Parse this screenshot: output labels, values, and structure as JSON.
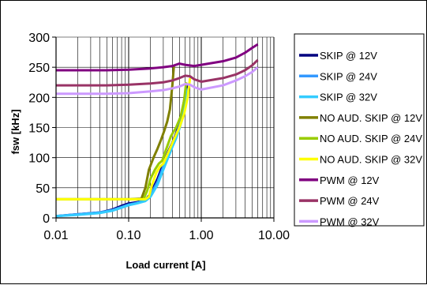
{
  "chart_data": {
    "type": "line",
    "title": "",
    "xlabel": "Load current [A]",
    "ylabel": "fsw [kHz]",
    "x_scale": "log",
    "xlim": [
      0.01,
      10
    ],
    "ylim": [
      0,
      300
    ],
    "x_ticks": [
      {
        "value": 0.01,
        "label": "0.01"
      },
      {
        "value": 0.1,
        "label": "0.10"
      },
      {
        "value": 1,
        "label": "1.00"
      },
      {
        "value": 10,
        "label": "10.00"
      }
    ],
    "y_ticks": [
      {
        "value": 0,
        "label": "0"
      },
      {
        "value": 50,
        "label": "50"
      },
      {
        "value": 100,
        "label": "100"
      },
      {
        "value": 150,
        "label": "150"
      },
      {
        "value": 200,
        "label": "200"
      },
      {
        "value": 250,
        "label": "250"
      },
      {
        "value": 300,
        "label": "300"
      }
    ],
    "grid": true,
    "legend_position": "right",
    "series": [
      {
        "name": "SKIP @ 12V",
        "color": "#000080",
        "points": [
          [
            0.01,
            3
          ],
          [
            0.02,
            6
          ],
          [
            0.04,
            9
          ],
          [
            0.06,
            14
          ],
          [
            0.08,
            20
          ],
          [
            0.1,
            24
          ],
          [
            0.13,
            26
          ],
          [
            0.17,
            30
          ],
          [
            0.2,
            40
          ],
          [
            0.25,
            65
          ],
          [
            0.3,
            90
          ],
          [
            0.35,
            110
          ],
          [
            0.4,
            125
          ],
          [
            0.45,
            140
          ],
          [
            0.5,
            158
          ],
          [
            0.55,
            178
          ],
          [
            0.6,
            205
          ],
          [
            0.65,
            220
          ]
        ]
      },
      {
        "name": "SKIP @ 24V",
        "color": "#3399FF",
        "points": [
          [
            0.01,
            3
          ],
          [
            0.02,
            6
          ],
          [
            0.04,
            9
          ],
          [
            0.06,
            13
          ],
          [
            0.08,
            18
          ],
          [
            0.1,
            22
          ],
          [
            0.13,
            25
          ],
          [
            0.17,
            30
          ],
          [
            0.2,
            38
          ],
          [
            0.25,
            60
          ],
          [
            0.3,
            85
          ],
          [
            0.35,
            105
          ],
          [
            0.4,
            122
          ],
          [
            0.45,
            138
          ],
          [
            0.5,
            152
          ],
          [
            0.55,
            170
          ],
          [
            0.6,
            195
          ],
          [
            0.65,
            215
          ]
        ]
      },
      {
        "name": "SKIP @ 32V",
        "color": "#33CCFF",
        "points": [
          [
            0.01,
            3
          ],
          [
            0.02,
            5
          ],
          [
            0.04,
            8
          ],
          [
            0.06,
            12
          ],
          [
            0.08,
            17
          ],
          [
            0.1,
            21
          ],
          [
            0.13,
            24
          ],
          [
            0.17,
            28
          ],
          [
            0.2,
            35
          ],
          [
            0.25,
            55
          ],
          [
            0.3,
            80
          ],
          [
            0.35,
            100
          ],
          [
            0.4,
            118
          ],
          [
            0.45,
            132
          ],
          [
            0.5,
            148
          ],
          [
            0.55,
            165
          ],
          [
            0.6,
            190
          ],
          [
            0.65,
            212
          ]
        ]
      },
      {
        "name": "NO AUD. SKIP @ 12V",
        "color": "#808000",
        "points": [
          [
            0.01,
            31
          ],
          [
            0.05,
            31
          ],
          [
            0.1,
            31
          ],
          [
            0.15,
            32
          ],
          [
            0.17,
            50
          ],
          [
            0.19,
            80
          ],
          [
            0.22,
            100
          ],
          [
            0.25,
            115
          ],
          [
            0.28,
            130
          ],
          [
            0.31,
            145
          ],
          [
            0.34,
            160
          ],
          [
            0.37,
            180
          ],
          [
            0.4,
            220
          ],
          [
            0.42,
            252
          ]
        ]
      },
      {
        "name": "NO AUD. SKIP @ 24V",
        "color": "#99CC00",
        "points": [
          [
            0.01,
            31
          ],
          [
            0.05,
            31
          ],
          [
            0.1,
            31
          ],
          [
            0.16,
            31
          ],
          [
            0.18,
            45
          ],
          [
            0.2,
            65
          ],
          [
            0.23,
            80
          ],
          [
            0.26,
            90
          ],
          [
            0.29,
            95
          ],
          [
            0.32,
            110
          ],
          [
            0.38,
            135
          ],
          [
            0.45,
            150
          ],
          [
            0.52,
            168
          ],
          [
            0.58,
            195
          ],
          [
            0.62,
            225
          ]
        ]
      },
      {
        "name": "NO AUD. SKIP @ 32V",
        "color": "#FFFF00",
        "points": [
          [
            0.01,
            31
          ],
          [
            0.05,
            31
          ],
          [
            0.1,
            31
          ],
          [
            0.17,
            31
          ],
          [
            0.19,
            35
          ],
          [
            0.21,
            55
          ],
          [
            0.24,
            75
          ],
          [
            0.27,
            85
          ],
          [
            0.3,
            90
          ],
          [
            0.35,
            108
          ],
          [
            0.42,
            130
          ],
          [
            0.5,
            150
          ],
          [
            0.58,
            172
          ],
          [
            0.65,
            200
          ],
          [
            0.7,
            232
          ]
        ]
      },
      {
        "name": "PWM @ 12V",
        "color": "#800080",
        "points": [
          [
            0.01,
            245
          ],
          [
            0.05,
            245
          ],
          [
            0.1,
            246
          ],
          [
            0.2,
            248
          ],
          [
            0.3,
            250
          ],
          [
            0.4,
            252
          ],
          [
            0.5,
            256
          ],
          [
            0.6,
            254
          ],
          [
            0.8,
            252
          ],
          [
            1.0,
            254
          ],
          [
            2.0,
            260
          ],
          [
            3.0,
            266
          ],
          [
            4.0,
            274
          ],
          [
            5.0,
            282
          ],
          [
            6.0,
            288
          ]
        ]
      },
      {
        "name": "PWM @ 24V",
        "color": "#993366",
        "points": [
          [
            0.01,
            220
          ],
          [
            0.05,
            220
          ],
          [
            0.1,
            221
          ],
          [
            0.2,
            223
          ],
          [
            0.3,
            225
          ],
          [
            0.4,
            228
          ],
          [
            0.5,
            232
          ],
          [
            0.6,
            236
          ],
          [
            0.7,
            235
          ],
          [
            0.8,
            230
          ],
          [
            1.0,
            226
          ],
          [
            2.0,
            232
          ],
          [
            3.0,
            238
          ],
          [
            4.0,
            245
          ],
          [
            5.0,
            253
          ],
          [
            6.0,
            262
          ]
        ]
      },
      {
        "name": "PWM @ 32V",
        "color": "#CC99FF",
        "points": [
          [
            0.01,
            206
          ],
          [
            0.05,
            206
          ],
          [
            0.1,
            207
          ],
          [
            0.2,
            210
          ],
          [
            0.3,
            212
          ],
          [
            0.4,
            215
          ],
          [
            0.5,
            218
          ],
          [
            0.6,
            222
          ],
          [
            0.7,
            221
          ],
          [
            0.8,
            217
          ],
          [
            1.0,
            213
          ],
          [
            2.0,
            220
          ],
          [
            3.0,
            228
          ],
          [
            4.0,
            235
          ],
          [
            5.0,
            242
          ],
          [
            6.0,
            250
          ]
        ]
      }
    ]
  }
}
